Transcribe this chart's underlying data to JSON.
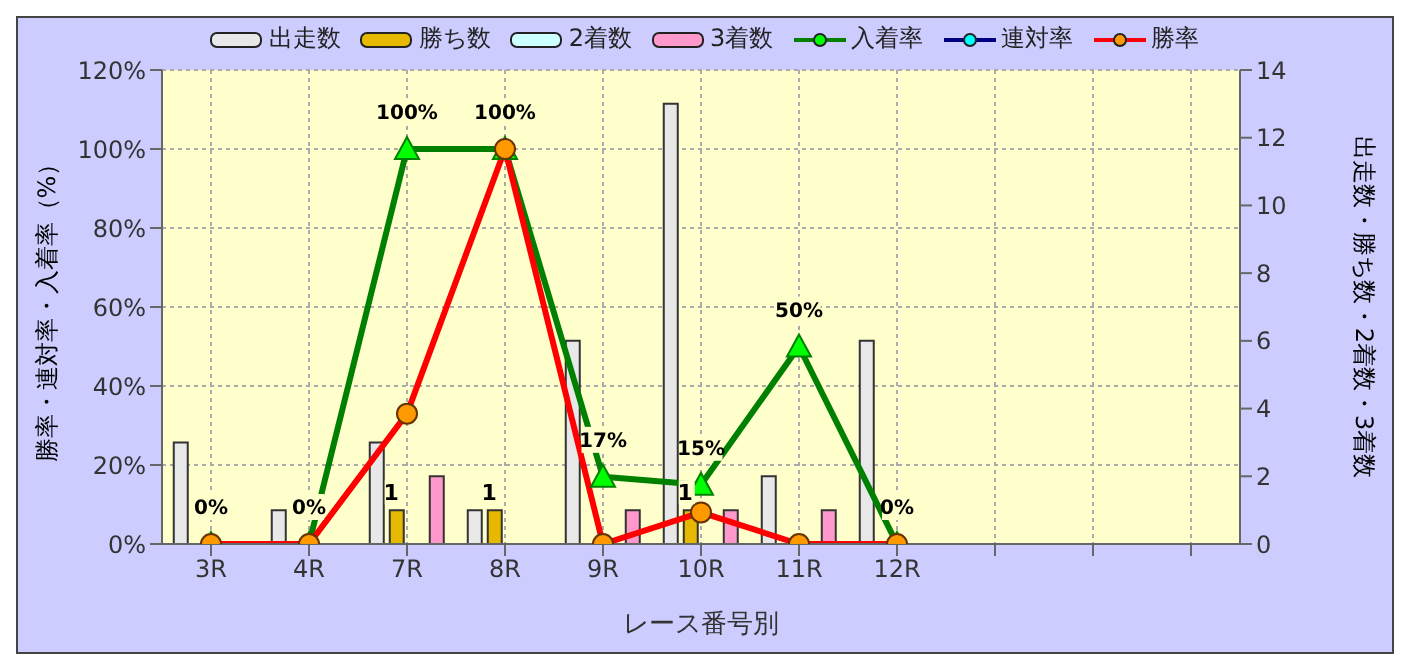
{
  "chart_data": {
    "type": "bar",
    "xlabel": "レース番号別",
    "ylabel": "勝率・連対率・入着率（%）",
    "y2label": "出走数・勝ち数・2着数・3着数",
    "categories": [
      "3R",
      "4R",
      "7R",
      "8R",
      "9R",
      "10R",
      "11R",
      "12R",
      null,
      null,
      null
    ],
    "series": [
      {
        "name": "出走数",
        "axis": "y2",
        "color": "#e8e8e8",
        "values": [
          3,
          1,
          3,
          1,
          6,
          13,
          2,
          6,
          null,
          null,
          null
        ]
      },
      {
        "name": "勝ち数",
        "axis": "y2",
        "color": "#e6b800",
        "values": [
          0,
          0,
          1,
          1,
          0,
          1,
          0,
          0,
          null,
          null,
          null
        ],
        "value_labels": [
          null,
          null,
          "1",
          "1",
          null,
          "1",
          null,
          null,
          null,
          null,
          null
        ]
      },
      {
        "name": "2着数",
        "axis": "y2",
        "color": "#ccffff",
        "values": [
          0,
          0,
          0,
          0,
          0,
          0,
          0,
          0,
          null,
          null,
          null
        ]
      },
      {
        "name": "3着数",
        "axis": "y2",
        "color": "#ff99cc",
        "values": [
          0,
          0,
          2,
          0,
          1,
          1,
          1,
          0,
          null,
          null,
          null
        ]
      },
      {
        "name": "入着率",
        "type": "line",
        "color": "#008000",
        "marker": "triangle",
        "values": [
          0,
          0,
          100,
          100,
          17,
          15,
          50,
          0,
          null,
          null,
          null
        ],
        "value_labels": [
          "0%",
          "0%",
          "100%",
          "100%",
          "17%",
          "15%",
          "50%",
          "0%",
          null,
          null,
          null
        ]
      },
      {
        "name": "連対率",
        "type": "line",
        "color": "#000080",
        "marker": "diamond",
        "values": [
          null,
          null,
          null,
          null,
          null,
          null,
          null,
          null,
          null,
          null,
          null
        ]
      },
      {
        "name": "勝率",
        "type": "line",
        "color": "#ff0000",
        "marker": "circle",
        "values": [
          0,
          0,
          33,
          100,
          0,
          8,
          0,
          0,
          null,
          null,
          null
        ]
      }
    ],
    "ylim": [
      0,
      120
    ],
    "yticks": [
      {
        "value": 0,
        "label": "0%"
      },
      {
        "value": 20,
        "label": "20%"
      },
      {
        "value": 40,
        "label": "40%"
      },
      {
        "value": 60,
        "label": "60%"
      },
      {
        "value": 80,
        "label": "80%"
      },
      {
        "value": 100,
        "label": "100%"
      },
      {
        "value": 120,
        "label": "120%"
      }
    ],
    "y2lim": [
      0,
      14
    ],
    "y2ticks": [
      0,
      2,
      4,
      6,
      8,
      10,
      12,
      14
    ],
    "grid": true,
    "legend": "top"
  }
}
